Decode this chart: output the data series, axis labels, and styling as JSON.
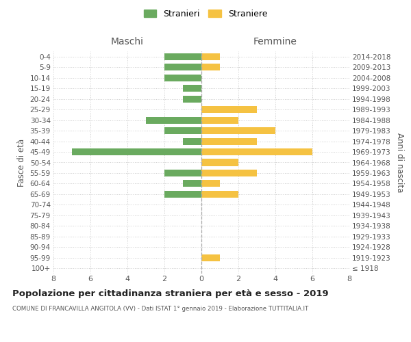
{
  "age_groups": [
    "100+",
    "95-99",
    "90-94",
    "85-89",
    "80-84",
    "75-79",
    "70-74",
    "65-69",
    "60-64",
    "55-59",
    "50-54",
    "45-49",
    "40-44",
    "35-39",
    "30-34",
    "25-29",
    "20-24",
    "15-19",
    "10-14",
    "5-9",
    "0-4"
  ],
  "birth_years": [
    "≤ 1918",
    "1919-1923",
    "1924-1928",
    "1929-1933",
    "1934-1938",
    "1939-1943",
    "1944-1948",
    "1949-1953",
    "1954-1958",
    "1959-1963",
    "1964-1968",
    "1969-1973",
    "1974-1978",
    "1979-1983",
    "1984-1988",
    "1989-1993",
    "1994-1998",
    "1999-2003",
    "2004-2008",
    "2009-2013",
    "2014-2018"
  ],
  "maschi": [
    0,
    0,
    0,
    0,
    0,
    0,
    0,
    2,
    1,
    2,
    0,
    7,
    1,
    2,
    3,
    0,
    1,
    1,
    2,
    2,
    2
  ],
  "femmine": [
    0,
    1,
    0,
    0,
    0,
    0,
    0,
    2,
    1,
    3,
    2,
    6,
    3,
    4,
    2,
    3,
    0,
    0,
    0,
    1,
    1
  ],
  "color_maschi": "#6aaa5f",
  "color_femmine": "#f5c242",
  "title": "Popolazione per cittadinanza straniera per età e sesso - 2019",
  "subtitle": "COMUNE DI FRANCAVILLA ANGITOLA (VV) - Dati ISTAT 1° gennaio 2019 - Elaborazione TUTTITALIA.IT",
  "xlabel_left": "Maschi",
  "xlabel_right": "Femmine",
  "ylabel_left": "Fasce di età",
  "ylabel_right": "Anni di nascita",
  "legend_maschi": "Stranieri",
  "legend_femmine": "Straniere",
  "xlim": 8,
  "background_color": "#ffffff",
  "grid_color": "#cccccc",
  "tick_color": "#888888",
  "label_color": "#555555"
}
